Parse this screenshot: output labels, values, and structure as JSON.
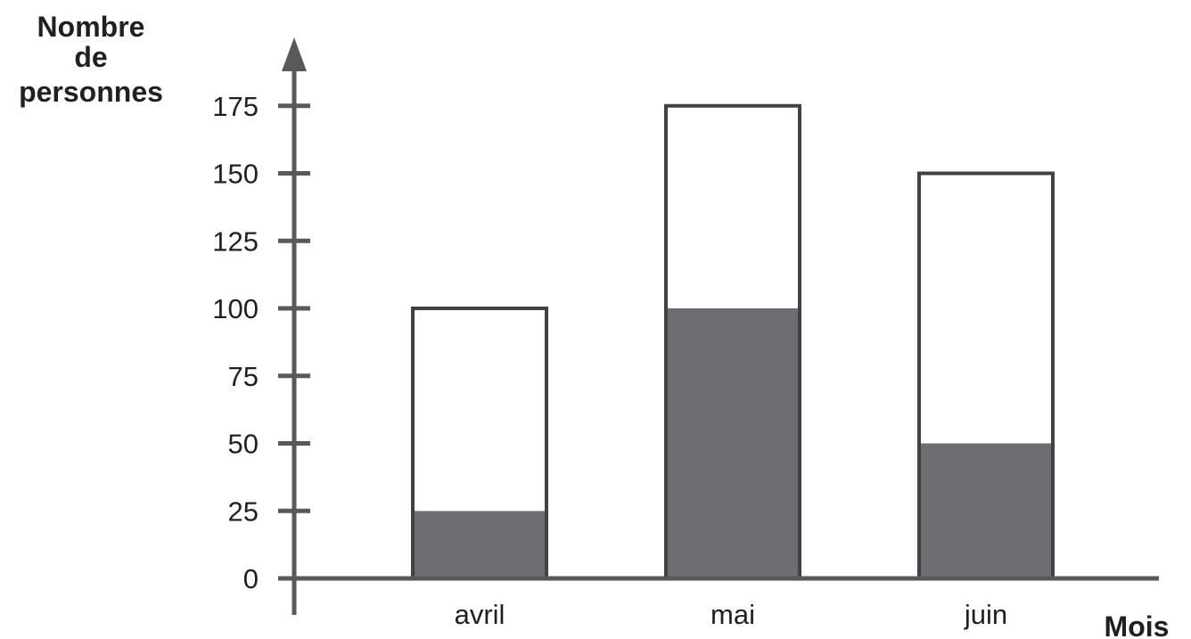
{
  "chart_data": {
    "type": "bar",
    "stacked": true,
    "ylabel_lines": [
      "Nombre",
      "de",
      "personnes"
    ],
    "xlabel": "Mois",
    "categories": [
      "avril",
      "mai",
      "juin"
    ],
    "ylim": [
      0,
      175
    ],
    "yticks": [
      0,
      25,
      50,
      75,
      100,
      125,
      150,
      175
    ],
    "series": [
      {
        "values": [
          25,
          100,
          50
        ],
        "color": "#6d6e71"
      },
      {
        "values": [
          75,
          75,
          100
        ],
        "color": "#ffffff"
      }
    ],
    "totals": [
      100,
      175,
      150
    ],
    "axis_color": "#58595b",
    "outline_color": "#414042",
    "grid": false,
    "legend": "none"
  }
}
